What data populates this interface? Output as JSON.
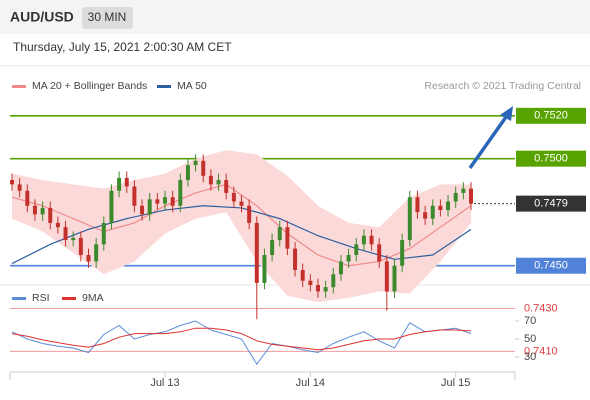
{
  "header": {
    "symbol": "AUD/USD",
    "timeframe": "30 MIN",
    "timestamp": "Thursday, July 15, 2021 2:00:30 AM CET",
    "credit": "Research © 2021 Trading Central"
  },
  "chart_data": [
    {
      "type": "candlestick",
      "up_color": "#3c8a2e",
      "down_color": "#c4302b",
      "open": [
        0.749,
        0.7488,
        0.7485,
        0.7478,
        0.7474,
        0.7477,
        0.747,
        0.7468,
        0.7462,
        0.7463,
        0.7455,
        0.7452,
        0.746,
        0.747,
        0.7485,
        0.7491,
        0.7487,
        0.7478,
        0.7474,
        0.7481,
        0.7479,
        0.7482,
        0.7478,
        0.749,
        0.7497,
        0.7499,
        0.7492,
        0.7488,
        0.749,
        0.7484,
        0.748,
        0.7478,
        0.747,
        0.7442,
        0.7455,
        0.7462,
        0.7468,
        0.7458,
        0.7448,
        0.7443,
        0.7441,
        0.7438,
        0.744,
        0.7446,
        0.7452,
        0.7455,
        0.746,
        0.7464,
        0.746,
        0.7452,
        0.7438,
        0.745,
        0.7462,
        0.7482,
        0.7475,
        0.7472,
        0.7478,
        0.7476,
        0.748,
        0.7484,
        0.7486
      ],
      "high": [
        0.7493,
        0.7491,
        0.7488,
        0.7481,
        0.748,
        0.748,
        0.7473,
        0.7471,
        0.7466,
        0.7466,
        0.7458,
        0.7463,
        0.7473,
        0.7488,
        0.7494,
        0.7494,
        0.749,
        0.7481,
        0.7484,
        0.7484,
        0.7485,
        0.7485,
        0.7493,
        0.75,
        0.7502,
        0.7502,
        0.7495,
        0.7493,
        0.7493,
        0.7487,
        0.7483,
        0.7481,
        0.7473,
        0.7458,
        0.7465,
        0.7471,
        0.7471,
        0.7461,
        0.7451,
        0.7446,
        0.7444,
        0.7443,
        0.7449,
        0.7455,
        0.7458,
        0.7463,
        0.7467,
        0.7467,
        0.7463,
        0.7455,
        0.7453,
        0.7465,
        0.7485,
        0.7485,
        0.7478,
        0.7481,
        0.7481,
        0.7483,
        0.7487,
        0.7489,
        0.7489
      ],
      "low": [
        0.7485,
        0.7482,
        0.7475,
        0.7471,
        0.7471,
        0.7467,
        0.7465,
        0.7459,
        0.7459,
        0.7452,
        0.7449,
        0.7449,
        0.7457,
        0.7467,
        0.7482,
        0.7484,
        0.7475,
        0.7471,
        0.7471,
        0.7476,
        0.7476,
        0.7475,
        0.7475,
        0.7487,
        0.7494,
        0.7489,
        0.7485,
        0.7485,
        0.7481,
        0.7477,
        0.7475,
        0.7467,
        0.7425,
        0.7439,
        0.7452,
        0.7459,
        0.7455,
        0.7445,
        0.744,
        0.7438,
        0.7435,
        0.7435,
        0.7437,
        0.7443,
        0.7449,
        0.7452,
        0.7457,
        0.7457,
        0.7449,
        0.7429,
        0.7435,
        0.7447,
        0.7459,
        0.7472,
        0.7469,
        0.7469,
        0.7473,
        0.7473,
        0.7477,
        0.7481,
        0.7476
      ],
      "close": [
        0.7488,
        0.7485,
        0.7478,
        0.7474,
        0.7477,
        0.747,
        0.7468,
        0.7462,
        0.7463,
        0.7455,
        0.7452,
        0.746,
        0.747,
        0.7485,
        0.7491,
        0.7487,
        0.7478,
        0.7474,
        0.7481,
        0.7479,
        0.7482,
        0.7478,
        0.749,
        0.7497,
        0.7499,
        0.7492,
        0.7488,
        0.749,
        0.7484,
        0.748,
        0.7478,
        0.747,
        0.7442,
        0.7455,
        0.7462,
        0.7468,
        0.7458,
        0.7448,
        0.7443,
        0.7441,
        0.7438,
        0.744,
        0.7446,
        0.7452,
        0.7455,
        0.746,
        0.7464,
        0.746,
        0.7452,
        0.7438,
        0.745,
        0.7462,
        0.7482,
        0.7475,
        0.7472,
        0.7478,
        0.7476,
        0.748,
        0.7484,
        0.7486,
        0.7479
      ],
      "ylim": [
        0.7441,
        0.7533
      ],
      "xticks": [
        {
          "value": 20,
          "label": "Jul 13"
        },
        {
          "value": 39,
          "label": "Jul 14"
        },
        {
          "value": 58,
          "label": "Jul 15"
        }
      ],
      "levels": [
        {
          "value": 0.752,
          "label": "0.7520",
          "color": "#58a300",
          "filled": true
        },
        {
          "value": 0.75,
          "label": "0.7500",
          "color": "#58a300",
          "filled": true
        },
        {
          "value": 0.7479,
          "label": "0.7479",
          "color": "#333333",
          "filled": true,
          "dotted": true
        },
        {
          "value": 0.745,
          "label": "0.7450",
          "color": "#4f82d8",
          "filled": true
        },
        {
          "value": 0.743,
          "label": "0.7430",
          "color": "#e3393e",
          "filled": false
        },
        {
          "value": 0.741,
          "label": "0.7410",
          "color": "#e3393e",
          "filled": false
        }
      ],
      "overlays": [
        {
          "name": "MA 20 + Bollinger Bands",
          "color": "#f08a8a",
          "band_color": "#fcd9d9",
          "x": [
            0,
            4,
            8,
            12,
            16,
            20,
            24,
            28,
            32,
            36,
            40,
            44,
            48,
            52,
            56,
            60
          ],
          "values": [
            0.7482,
            0.7478,
            0.7472,
            0.7466,
            0.747,
            0.7478,
            0.7484,
            0.7488,
            0.7478,
            0.7465,
            0.7455,
            0.745,
            0.7452,
            0.7458,
            0.7468,
            0.7478
          ],
          "upper": [
            0.7493,
            0.749,
            0.7488,
            0.7486,
            0.749,
            0.7493,
            0.75,
            0.7504,
            0.7502,
            0.7492,
            0.7478,
            0.747,
            0.7468,
            0.7482,
            0.7488,
            0.7488
          ],
          "lower": [
            0.7472,
            0.7466,
            0.7456,
            0.7446,
            0.7452,
            0.7465,
            0.7472,
            0.7475,
            0.7452,
            0.7436,
            0.7433,
            0.7435,
            0.7438,
            0.7437,
            0.7452,
            0.747
          ]
        },
        {
          "name": "MA 50",
          "color": "#2c5f9e",
          "x": [
            0,
            5,
            10,
            15,
            20,
            25,
            30,
            35,
            40,
            45,
            50,
            55,
            60
          ],
          "values": [
            0.7451,
            0.746,
            0.7467,
            0.7472,
            0.7476,
            0.7478,
            0.7477,
            0.7472,
            0.7464,
            0.7458,
            0.7453,
            0.7455,
            0.7467
          ]
        }
      ]
    },
    {
      "type": "line",
      "x": [
        0,
        2,
        4,
        6,
        8,
        10,
        12,
        14,
        16,
        18,
        20,
        22,
        24,
        26,
        28,
        30,
        32,
        34,
        36,
        38,
        40,
        42,
        44,
        46,
        48,
        50,
        52,
        54,
        56,
        58,
        60
      ],
      "series": [
        {
          "name": "RSI",
          "color": "#5b8dd6",
          "values": [
            58,
            50,
            45,
            42,
            40,
            35,
            55,
            65,
            50,
            55,
            58,
            65,
            70,
            60,
            55,
            50,
            22,
            45,
            42,
            38,
            35,
            45,
            52,
            58,
            48,
            40,
            68,
            58,
            60,
            62,
            56
          ]
        },
        {
          "name": "9MA",
          "color": "#e03030",
          "values": [
            56,
            53,
            49,
            46,
            43,
            41,
            45,
            52,
            56,
            56,
            56,
            58,
            62,
            62,
            60,
            56,
            48,
            44,
            42,
            40,
            38,
            40,
            44,
            48,
            50,
            50,
            55,
            58,
            60,
            60,
            59
          ]
        }
      ],
      "ylim": [
        15,
        85
      ],
      "yticks": [
        70,
        50,
        30
      ]
    }
  ]
}
